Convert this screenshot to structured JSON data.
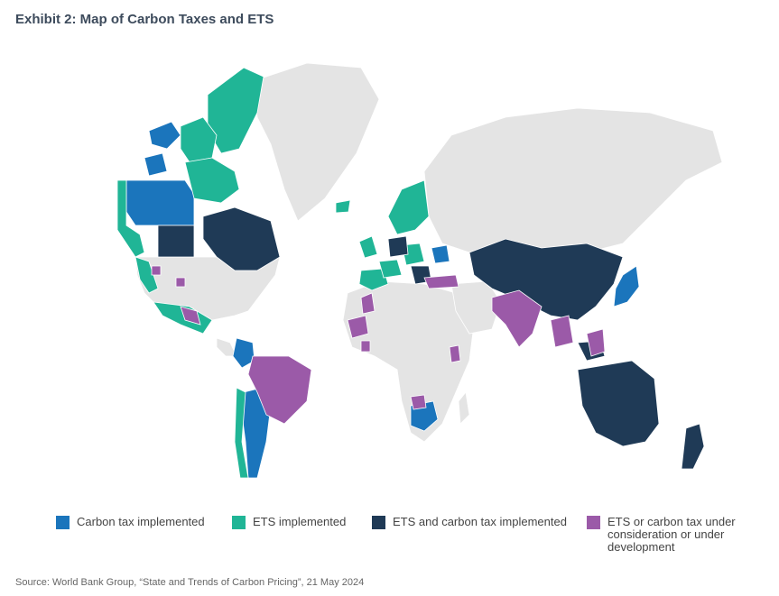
{
  "title": "Exhibit 2: Map of Carbon Taxes and ETS",
  "legend": [
    {
      "label": "Carbon tax implemented",
      "color": "#1b75bc"
    },
    {
      "label": "ETS implemented",
      "color": "#20b596"
    },
    {
      "label": "ETS and carbon tax implemented",
      "color": "#1f3a56"
    },
    {
      "label": "ETS or carbon tax under consideration or under development",
      "color": "#9b5aa8"
    }
  ],
  "source": "Source: World Bank Group, “State and Trends of Carbon Pricing”, 21 May 2024"
}
